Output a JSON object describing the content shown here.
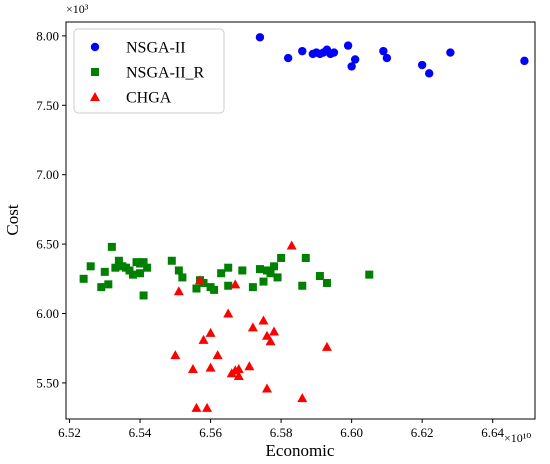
{
  "chart_data": {
    "type": "scatter",
    "xlabel": "Economic",
    "ylabel": "Cost",
    "x_multiplier": "×10¹⁰",
    "y_multiplier": "×10³",
    "xlim": [
      6.519,
      6.652
    ],
    "ylim": [
      5.24,
      8.1
    ],
    "x_ticks": [
      "6.52",
      "6.54",
      "6.56",
      "6.58",
      "6.60",
      "6.62",
      "6.64"
    ],
    "x_tick_values": [
      6.52,
      6.54,
      6.56,
      6.58,
      6.6,
      6.62,
      6.64
    ],
    "y_ticks": [
      "5.50",
      "6.00",
      "6.50",
      "7.00",
      "7.50",
      "8.00"
    ],
    "y_tick_values": [
      5.5,
      6.0,
      6.5,
      7.0,
      7.5,
      8.0
    ],
    "grid": false,
    "legend_position": "top-left",
    "series": [
      {
        "name": "NSGA-II",
        "marker": "circle",
        "color": "#0000ff",
        "points": [
          [
            6.574,
            7.99
          ],
          [
            6.582,
            7.84
          ],
          [
            6.586,
            7.89
          ],
          [
            6.589,
            7.87
          ],
          [
            6.59,
            7.88
          ],
          [
            6.591,
            7.87
          ],
          [
            6.592,
            7.88
          ],
          [
            6.593,
            7.9
          ],
          [
            6.594,
            7.87
          ],
          [
            6.595,
            7.88
          ],
          [
            6.599,
            7.93
          ],
          [
            6.6,
            7.78
          ],
          [
            6.601,
            7.83
          ],
          [
            6.609,
            7.89
          ],
          [
            6.61,
            7.84
          ],
          [
            6.62,
            7.79
          ],
          [
            6.622,
            7.73
          ],
          [
            6.628,
            7.88
          ],
          [
            6.649,
            7.82
          ]
        ]
      },
      {
        "name": "NSGA-II_R",
        "marker": "square",
        "color": "#008000",
        "points": [
          [
            6.524,
            6.25
          ],
          [
            6.526,
            6.34
          ],
          [
            6.529,
            6.19
          ],
          [
            6.53,
            6.3
          ],
          [
            6.531,
            6.21
          ],
          [
            6.532,
            6.48
          ],
          [
            6.533,
            6.33
          ],
          [
            6.534,
            6.38
          ],
          [
            6.535,
            6.34
          ],
          [
            6.536,
            6.33
          ],
          [
            6.537,
            6.31
          ],
          [
            6.538,
            6.28
          ],
          [
            6.539,
            6.37
          ],
          [
            6.54,
            6.29
          ],
          [
            6.54,
            6.36
          ],
          [
            6.541,
            6.13
          ],
          [
            6.541,
            6.37
          ],
          [
            6.542,
            6.33
          ],
          [
            6.549,
            6.38
          ],
          [
            6.551,
            6.31
          ],
          [
            6.552,
            6.26
          ],
          [
            6.556,
            6.18
          ],
          [
            6.557,
            6.24
          ],
          [
            6.558,
            6.22
          ],
          [
            6.56,
            6.19
          ],
          [
            6.561,
            6.17
          ],
          [
            6.563,
            6.29
          ],
          [
            6.565,
            6.2
          ],
          [
            6.565,
            6.33
          ],
          [
            6.569,
            6.31
          ],
          [
            6.572,
            6.19
          ],
          [
            6.574,
            6.32
          ],
          [
            6.575,
            6.23
          ],
          [
            6.576,
            6.31
          ],
          [
            6.577,
            6.29
          ],
          [
            6.578,
            6.34
          ],
          [
            6.579,
            6.26
          ],
          [
            6.58,
            6.4
          ],
          [
            6.586,
            6.2
          ],
          [
            6.587,
            6.4
          ],
          [
            6.591,
            6.27
          ],
          [
            6.593,
            6.22
          ],
          [
            6.605,
            6.28
          ]
        ]
      },
      {
        "name": "CHGA",
        "marker": "triangle",
        "color": "#ff0000",
        "points": [
          [
            6.55,
            5.7
          ],
          [
            6.551,
            6.16
          ],
          [
            6.555,
            5.6
          ],
          [
            6.556,
            5.32
          ],
          [
            6.557,
            6.24
          ],
          [
            6.558,
            5.81
          ],
          [
            6.559,
            5.32
          ],
          [
            6.56,
            5.61
          ],
          [
            6.56,
            5.86
          ],
          [
            6.562,
            5.7
          ],
          [
            6.565,
            6.0
          ],
          [
            6.566,
            5.57
          ],
          [
            6.567,
            5.59
          ],
          [
            6.567,
            6.21
          ],
          [
            6.568,
            5.55
          ],
          [
            6.568,
            5.6
          ],
          [
            6.571,
            5.62
          ],
          [
            6.572,
            5.9
          ],
          [
            6.575,
            5.95
          ],
          [
            6.576,
            5.46
          ],
          [
            6.576,
            5.84
          ],
          [
            6.577,
            5.8
          ],
          [
            6.578,
            5.87
          ],
          [
            6.583,
            6.49
          ],
          [
            6.586,
            5.39
          ],
          [
            6.593,
            5.76
          ]
        ]
      }
    ]
  }
}
